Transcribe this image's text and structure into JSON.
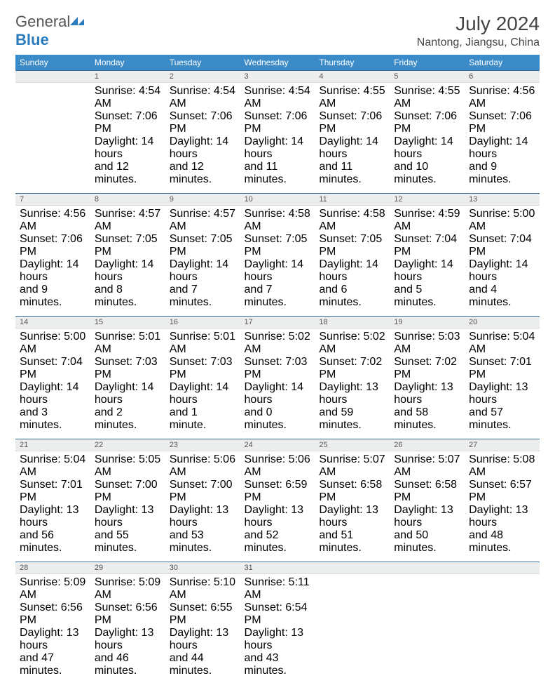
{
  "logo": {
    "text1": "General",
    "text2": "Blue"
  },
  "title": "July 2024",
  "subtitle": "Nantong, Jiangsu, China",
  "colors": {
    "header_bg": "#3b8bc9",
    "header_text": "#ffffff",
    "daynum_bg": "#eceded",
    "rule": "#3b6e94",
    "text": "#333333"
  },
  "day_names": [
    "Sunday",
    "Monday",
    "Tuesday",
    "Wednesday",
    "Thursday",
    "Friday",
    "Saturday"
  ],
  "weeks": [
    {
      "nums": [
        "",
        "1",
        "2",
        "3",
        "4",
        "5",
        "6"
      ],
      "cells": [
        [],
        [
          "Sunrise: 4:54 AM",
          "Sunset: 7:06 PM",
          "Daylight: 14 hours",
          "and 12 minutes."
        ],
        [
          "Sunrise: 4:54 AM",
          "Sunset: 7:06 PM",
          "Daylight: 14 hours",
          "and 12 minutes."
        ],
        [
          "Sunrise: 4:54 AM",
          "Sunset: 7:06 PM",
          "Daylight: 14 hours",
          "and 11 minutes."
        ],
        [
          "Sunrise: 4:55 AM",
          "Sunset: 7:06 PM",
          "Daylight: 14 hours",
          "and 11 minutes."
        ],
        [
          "Sunrise: 4:55 AM",
          "Sunset: 7:06 PM",
          "Daylight: 14 hours",
          "and 10 minutes."
        ],
        [
          "Sunrise: 4:56 AM",
          "Sunset: 7:06 PM",
          "Daylight: 14 hours",
          "and 9 minutes."
        ]
      ]
    },
    {
      "nums": [
        "7",
        "8",
        "9",
        "10",
        "11",
        "12",
        "13"
      ],
      "cells": [
        [
          "Sunrise: 4:56 AM",
          "Sunset: 7:06 PM",
          "Daylight: 14 hours",
          "and 9 minutes."
        ],
        [
          "Sunrise: 4:57 AM",
          "Sunset: 7:05 PM",
          "Daylight: 14 hours",
          "and 8 minutes."
        ],
        [
          "Sunrise: 4:57 AM",
          "Sunset: 7:05 PM",
          "Daylight: 14 hours",
          "and 7 minutes."
        ],
        [
          "Sunrise: 4:58 AM",
          "Sunset: 7:05 PM",
          "Daylight: 14 hours",
          "and 7 minutes."
        ],
        [
          "Sunrise: 4:58 AM",
          "Sunset: 7:05 PM",
          "Daylight: 14 hours",
          "and 6 minutes."
        ],
        [
          "Sunrise: 4:59 AM",
          "Sunset: 7:04 PM",
          "Daylight: 14 hours",
          "and 5 minutes."
        ],
        [
          "Sunrise: 5:00 AM",
          "Sunset: 7:04 PM",
          "Daylight: 14 hours",
          "and 4 minutes."
        ]
      ]
    },
    {
      "nums": [
        "14",
        "15",
        "16",
        "17",
        "18",
        "19",
        "20"
      ],
      "cells": [
        [
          "Sunrise: 5:00 AM",
          "Sunset: 7:04 PM",
          "Daylight: 14 hours",
          "and 3 minutes."
        ],
        [
          "Sunrise: 5:01 AM",
          "Sunset: 7:03 PM",
          "Daylight: 14 hours",
          "and 2 minutes."
        ],
        [
          "Sunrise: 5:01 AM",
          "Sunset: 7:03 PM",
          "Daylight: 14 hours",
          "and 1 minute."
        ],
        [
          "Sunrise: 5:02 AM",
          "Sunset: 7:03 PM",
          "Daylight: 14 hours",
          "and 0 minutes."
        ],
        [
          "Sunrise: 5:02 AM",
          "Sunset: 7:02 PM",
          "Daylight: 13 hours",
          "and 59 minutes."
        ],
        [
          "Sunrise: 5:03 AM",
          "Sunset: 7:02 PM",
          "Daylight: 13 hours",
          "and 58 minutes."
        ],
        [
          "Sunrise: 5:04 AM",
          "Sunset: 7:01 PM",
          "Daylight: 13 hours",
          "and 57 minutes."
        ]
      ]
    },
    {
      "nums": [
        "21",
        "22",
        "23",
        "24",
        "25",
        "26",
        "27"
      ],
      "cells": [
        [
          "Sunrise: 5:04 AM",
          "Sunset: 7:01 PM",
          "Daylight: 13 hours",
          "and 56 minutes."
        ],
        [
          "Sunrise: 5:05 AM",
          "Sunset: 7:00 PM",
          "Daylight: 13 hours",
          "and 55 minutes."
        ],
        [
          "Sunrise: 5:06 AM",
          "Sunset: 7:00 PM",
          "Daylight: 13 hours",
          "and 53 minutes."
        ],
        [
          "Sunrise: 5:06 AM",
          "Sunset: 6:59 PM",
          "Daylight: 13 hours",
          "and 52 minutes."
        ],
        [
          "Sunrise: 5:07 AM",
          "Sunset: 6:58 PM",
          "Daylight: 13 hours",
          "and 51 minutes."
        ],
        [
          "Sunrise: 5:07 AM",
          "Sunset: 6:58 PM",
          "Daylight: 13 hours",
          "and 50 minutes."
        ],
        [
          "Sunrise: 5:08 AM",
          "Sunset: 6:57 PM",
          "Daylight: 13 hours",
          "and 48 minutes."
        ]
      ]
    },
    {
      "nums": [
        "28",
        "29",
        "30",
        "31",
        "",
        "",
        ""
      ],
      "cells": [
        [
          "Sunrise: 5:09 AM",
          "Sunset: 6:56 PM",
          "Daylight: 13 hours",
          "and 47 minutes."
        ],
        [
          "Sunrise: 5:09 AM",
          "Sunset: 6:56 PM",
          "Daylight: 13 hours",
          "and 46 minutes."
        ],
        [
          "Sunrise: 5:10 AM",
          "Sunset: 6:55 PM",
          "Daylight: 13 hours",
          "and 44 minutes."
        ],
        [
          "Sunrise: 5:11 AM",
          "Sunset: 6:54 PM",
          "Daylight: 13 hours",
          "and 43 minutes."
        ],
        [],
        [],
        []
      ]
    }
  ]
}
